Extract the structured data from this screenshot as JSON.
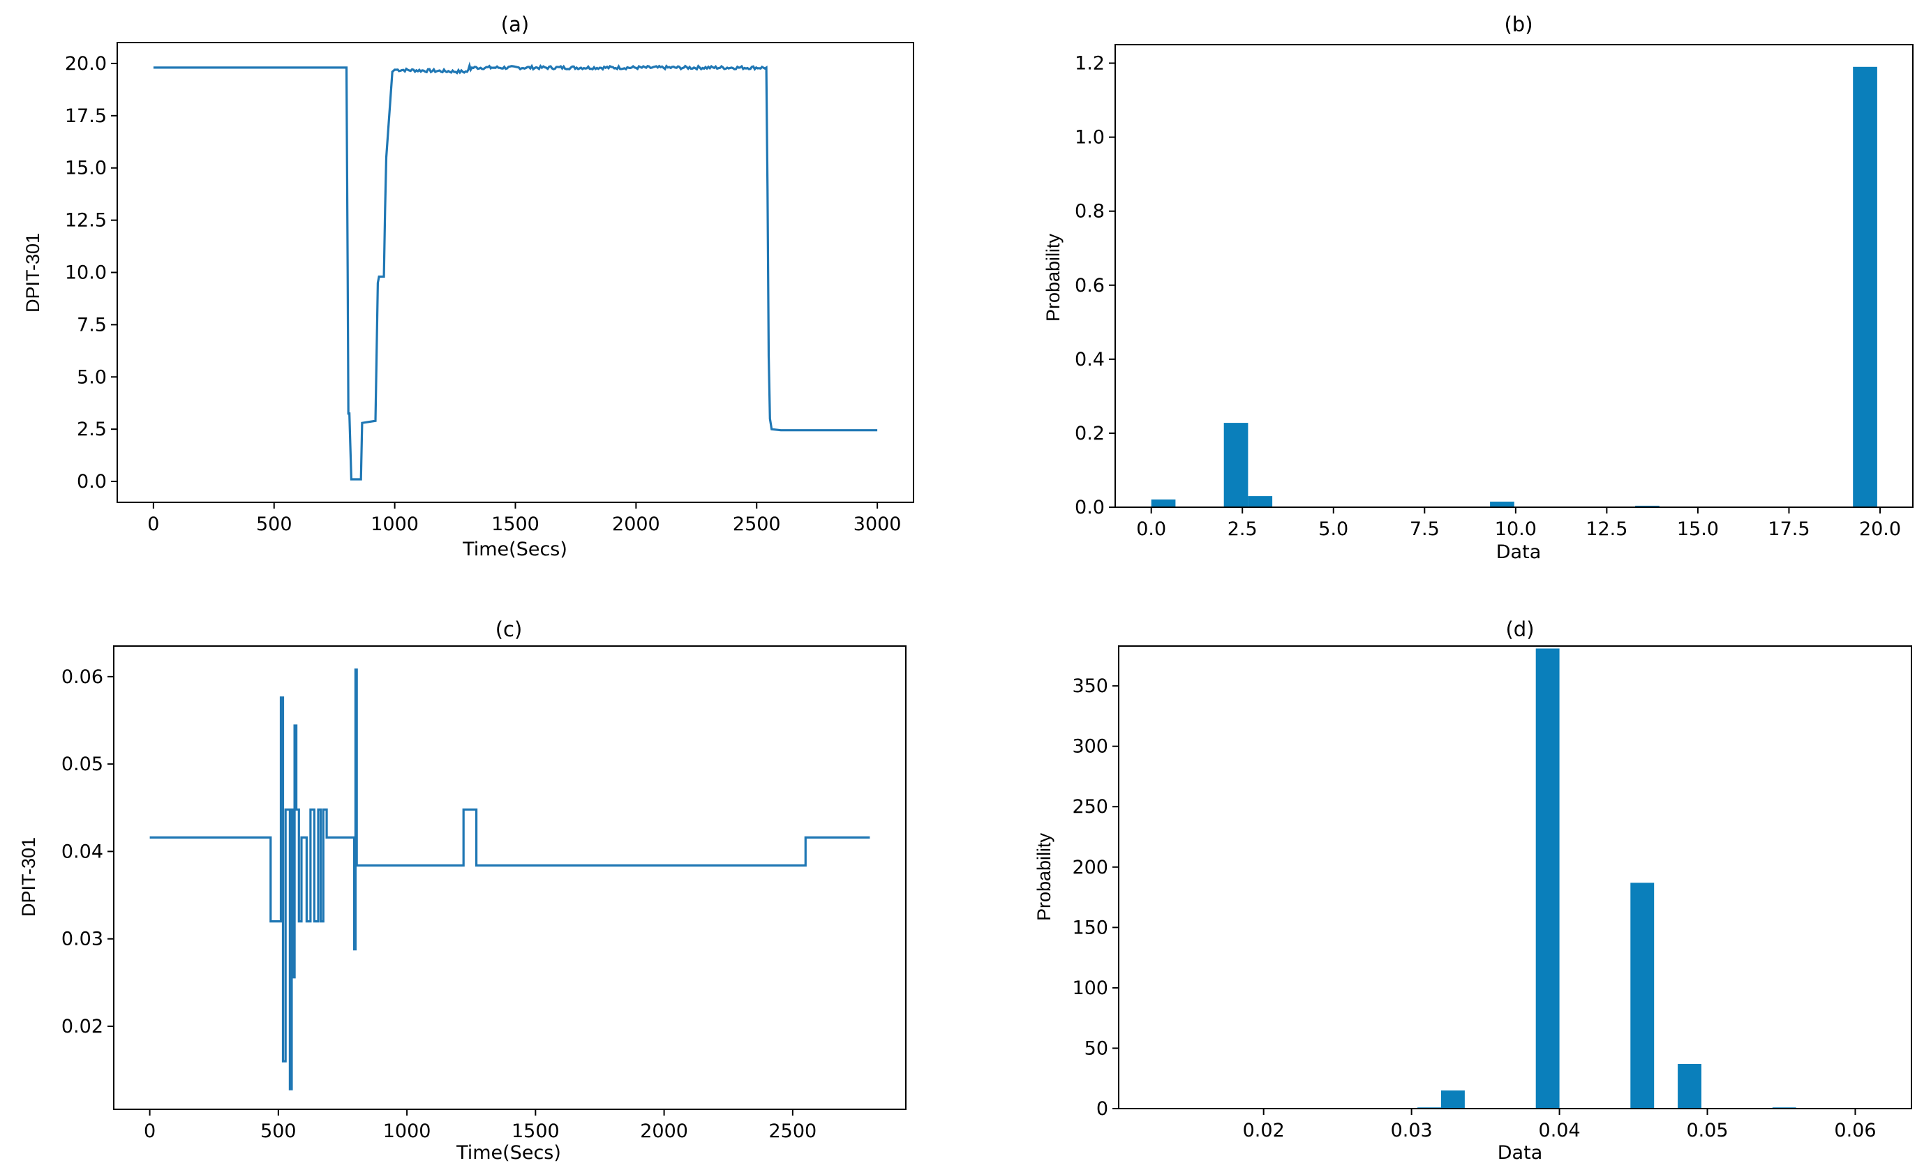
{
  "chart_data": [
    {
      "id": "a",
      "type": "line",
      "title": "(a)",
      "xlabel": "Time(Secs)",
      "ylabel": "DPIT-301",
      "xlim": [
        -150,
        3150
      ],
      "ylim": [
        -1.0,
        21.0
      ],
      "xticks": [
        0,
        500,
        1000,
        1500,
        2000,
        2500,
        3000
      ],
      "xtick_labels": [
        "0",
        "500",
        "1000",
        "1500",
        "2000",
        "2500",
        "3000"
      ],
      "yticks": [
        0.0,
        2.5,
        5.0,
        7.5,
        10.0,
        12.5,
        15.0,
        17.5,
        20.0
      ],
      "ytick_labels": [
        "0.0",
        "2.5",
        "5.0",
        "7.5",
        "10.0",
        "12.5",
        "15.0",
        "17.5",
        "20.0"
      ],
      "x": [
        0,
        800,
        805,
        808,
        812,
        820,
        860,
        865,
        920,
        930,
        935,
        955,
        960,
        965,
        990,
        1000,
        1300,
        1305,
        1310,
        1315,
        1320,
        1400,
        2540,
        2545,
        2550,
        2555,
        2562,
        2600,
        3000
      ],
      "y": [
        19.8,
        19.8,
        10.0,
        3.2,
        3.3,
        0.1,
        0.1,
        2.8,
        2.9,
        9.5,
        9.8,
        9.8,
        13.0,
        15.5,
        19.6,
        19.7,
        19.6,
        19.7,
        19.9,
        19.7,
        19.8,
        19.8,
        19.8,
        14.0,
        6.0,
        3.0,
        2.5,
        2.45,
        2.45
      ],
      "noise_ranges": [
        [
          0,
          795,
          0.08
        ],
        [
          990,
          2540,
          0.07
        ]
      ]
    },
    {
      "id": "b",
      "type": "bar",
      "title": "(b)",
      "xlabel": "Data",
      "ylabel": "Probability",
      "xlim": [
        -0.99,
        20.9
      ],
      "ylim": [
        0.0,
        1.25
      ],
      "xticks": [
        0.0,
        2.5,
        5.0,
        7.5,
        10.0,
        12.5,
        15.0,
        17.5,
        20.0
      ],
      "xtick_labels": [
        "0.0",
        "2.5",
        "5.0",
        "7.5",
        "10.0",
        "12.5",
        "15.0",
        "17.5",
        "20.0"
      ],
      "yticks": [
        0.0,
        0.2,
        0.4,
        0.6,
        0.8,
        1.0,
        1.2
      ],
      "ytick_labels": [
        "0.0",
        "0.2",
        "0.4",
        "0.6",
        "0.8",
        "1.0",
        "1.2"
      ],
      "bin_edges_start": 0.0,
      "bin_width": 0.664,
      "values": [
        0.021,
        0.0,
        0.0,
        0.228,
        0.03,
        0.0,
        0.0,
        0.0,
        0.0,
        0.0,
        0.0,
        0.0,
        0.0,
        0.0,
        0.015,
        0.0,
        0.0,
        0.0,
        0.0,
        0.0,
        0.004,
        0.0,
        0.0,
        0.0,
        0.0,
        0.0,
        0.0,
        0.0,
        0.0,
        1.19
      ]
    },
    {
      "id": "c",
      "type": "line",
      "title": "(c)",
      "xlabel": "Time(Secs)",
      "ylabel": "DPIT-301",
      "xlim": [
        -140,
        2940
      ],
      "ylim": [
        0.0105,
        0.0635
      ],
      "xticks": [
        0,
        500,
        1000,
        1500,
        2000,
        2500
      ],
      "xtick_labels": [
        "0",
        "500",
        "1000",
        "1500",
        "2000",
        "2500"
      ],
      "yticks": [
        0.02,
        0.03,
        0.04,
        0.05,
        0.06
      ],
      "ytick_labels": [
        "0.02",
        "0.03",
        "0.04",
        "0.05",
        "0.06"
      ],
      "x": [
        0,
        470,
        470,
        510,
        510,
        518,
        518,
        528,
        528,
        545,
        545,
        552,
        552,
        558,
        558,
        563,
        563,
        570,
        570,
        580,
        580,
        590,
        590,
        610,
        610,
        625,
        625,
        640,
        640,
        655,
        655,
        665,
        665,
        675,
        675,
        688,
        688,
        705,
        705,
        795,
        795,
        800,
        800,
        805,
        805,
        1220,
        1220,
        1270,
        1270,
        2550,
        2550,
        2800
      ],
      "y": [
        0.0416,
        0.0416,
        0.032,
        0.032,
        0.0576,
        0.0576,
        0.016,
        0.016,
        0.0448,
        0.0448,
        0.0128,
        0.0128,
        0.0448,
        0.0448,
        0.0256,
        0.0256,
        0.0544,
        0.0544,
        0.0448,
        0.0448,
        0.032,
        0.032,
        0.0416,
        0.0416,
        0.032,
        0.032,
        0.0448,
        0.0448,
        0.032,
        0.032,
        0.0448,
        0.0448,
        0.032,
        0.032,
        0.0448,
        0.0448,
        0.0416,
        0.0416,
        0.0416,
        0.0416,
        0.0288,
        0.0288,
        0.0608,
        0.0608,
        0.0384,
        0.0384,
        0.0448,
        0.0448,
        0.0384,
        0.0384,
        0.0416,
        0.0416
      ]
    },
    {
      "id": "d",
      "type": "bar",
      "title": "(d)",
      "xlabel": "Data",
      "ylabel": "Probability",
      "xlim": [
        0.0102,
        0.0638
      ],
      "ylim": [
        0,
        383
      ],
      "xticks": [
        0.02,
        0.03,
        0.04,
        0.05,
        0.06
      ],
      "xtick_labels": [
        "0.02",
        "0.03",
        "0.04",
        "0.05",
        "0.06"
      ],
      "yticks": [
        0,
        50,
        100,
        150,
        200,
        250,
        300,
        350
      ],
      "ytick_labels": [
        "0",
        "50",
        "100",
        "150",
        "200",
        "250",
        "300",
        "350"
      ],
      "bin_edges_start": 0.0128,
      "bin_width": 0.0016,
      "values": [
        0,
        0,
        0,
        0,
        0,
        0,
        0,
        0,
        0,
        0,
        0,
        1,
        15,
        0,
        0,
        0,
        381,
        0,
        0,
        0,
        187,
        0,
        37,
        0,
        0,
        0,
        1,
        0,
        0,
        0,
        0
      ]
    }
  ]
}
